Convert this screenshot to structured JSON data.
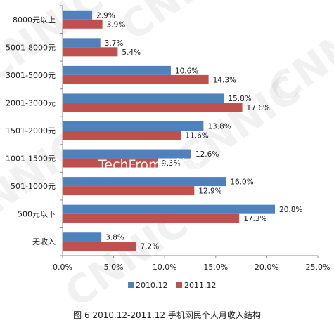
{
  "chart_data": {
    "type": "bar",
    "orientation": "horizontal",
    "categories": [
      "8000元以上",
      "5001-8000元",
      "3001-5000元",
      "2001-3000元",
      "1501-2000元",
      "1001-1500元",
      "501-1000元",
      "500元以下",
      "无收入"
    ],
    "series": [
      {
        "name": "2010.12",
        "color": "#4F81BD",
        "values": [
          2.9,
          3.7,
          10.6,
          15.8,
          13.8,
          12.6,
          16.0,
          20.8,
          3.8
        ]
      },
      {
        "name": "2011.12",
        "color": "#C0504D",
        "values": [
          3.9,
          5.4,
          14.3,
          17.6,
          11.6,
          9.3,
          12.9,
          17.3,
          7.2
        ]
      }
    ],
    "xlim": [
      0,
      25
    ],
    "xticks": [
      "0.0%",
      "5.0%",
      "10.0%",
      "15.0%",
      "20.0%",
      "25.0%"
    ],
    "value_labels": [
      [
        "2.9%",
        "3.7%",
        "10.6%",
        "15.8%",
        "13.8%",
        "12.6%",
        "16.0%",
        "20.8%",
        "3.8%"
      ],
      [
        "3.9%",
        "5.4%",
        "14.3%",
        "17.6%",
        "11.6%",
        "9.3%",
        "12.9%",
        "17.3%",
        "7.2%"
      ]
    ],
    "legend": [
      "2010.12",
      "2011.12"
    ],
    "legend_position": "bottom",
    "grid": false
  },
  "watermark": {
    "repeated": "CNNIC",
    "overlay": "TechFrom科技源"
  },
  "caption": "图 6 2010.12-2011.12 手机网民个人月收入结构"
}
